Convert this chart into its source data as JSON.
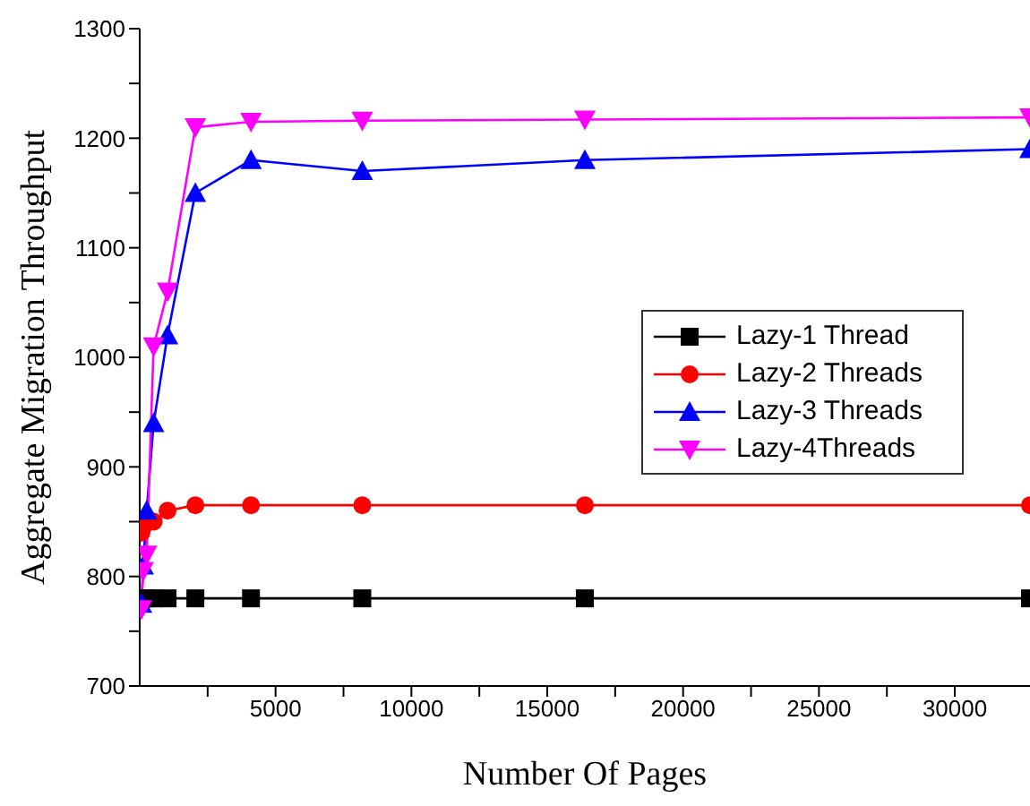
{
  "chart_data": {
    "type": "line",
    "xlabel": "Number Of Pages",
    "ylabel": "Aggregate Migration Throughput",
    "x": [
      64,
      128,
      256,
      512,
      1024,
      2048,
      4096,
      8192,
      16384,
      32768
    ],
    "xlim": [
      0,
      32768
    ],
    "xticks": [
      {
        "value": 2500,
        "label": null
      },
      5000,
      {
        "value": 7500,
        "label": null
      },
      10000,
      {
        "value": 12500,
        "label": null
      },
      15000,
      {
        "value": 17500,
        "label": null
      },
      20000,
      {
        "value": 22500,
        "label": null
      },
      25000,
      {
        "value": 27500,
        "label": null
      },
      30000
    ],
    "ylim": [
      700,
      1300
    ],
    "yticks": [
      700,
      {
        "value": 750,
        "label": null
      },
      800,
      {
        "value": 850,
        "label": null
      },
      900,
      {
        "value": 950,
        "label": null
      },
      1000,
      {
        "value": 1050,
        "label": null
      },
      1100,
      {
        "value": 1150,
        "label": null
      },
      1200,
      {
        "value": 1250,
        "label": null
      },
      1300
    ],
    "legend": "right",
    "grid": false,
    "series": [
      {
        "name": "Lazy-1 Thread",
        "color": "#000000",
        "marker": "square",
        "values": [
          780,
          780,
          780,
          780,
          780,
          780,
          780,
          780,
          780,
          780
        ]
      },
      {
        "name": "Lazy-2 Threads",
        "color": "#ff0000",
        "marker": "circle",
        "values": [
          840,
          845,
          850,
          850,
          860,
          865,
          865,
          865,
          865,
          865
        ]
      },
      {
        "name": "Lazy-3 Threads",
        "color": "#0000ff",
        "marker": "triangle",
        "values": [
          775,
          810,
          860,
          940,
          1020,
          1150,
          1180,
          1170,
          1180,
          1190
        ]
      },
      {
        "name": "Lazy-4Threads",
        "color": "#ff00ff",
        "marker": "triangle-down",
        "values": [
          770,
          805,
          820,
          1010,
          1060,
          1210,
          1215,
          1216,
          1217,
          1219
        ]
      }
    ]
  }
}
